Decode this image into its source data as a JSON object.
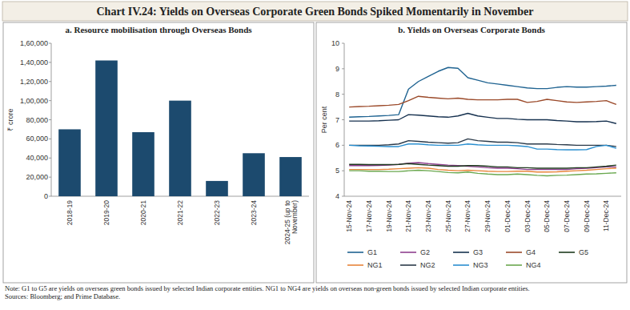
{
  "title": "Chart IV.24: Yields on Overseas Corporate Green Bonds Spiked Momentarily in November",
  "note": "Note: G1 to G5 are yields on overseas green bonds issued by selected Indian corporate entities. NG1 to NG4 are yields on overseas non-green bonds issued by selected Indian corporate entities.",
  "sources": "Sources: Bloomberg; and Prime Database.",
  "chart_data": [
    {
      "type": "bar",
      "title": "a. Resource mobilisation through Overseas Bonds",
      "y_label": "₹ crore",
      "categories": [
        "2018-19",
        "2019-20",
        "2020-21",
        "2021-22",
        "2022-23",
        "2023-24",
        "2024-25 (up to November)"
      ],
      "values": [
        70000,
        142000,
        67000,
        100000,
        16000,
        45000,
        41000
      ],
      "color": "#1c4a6e",
      "ylim": [
        0,
        160000
      ],
      "yticks": [
        0,
        {
          "value": 20000,
          "label": "20,000"
        },
        {
          "value": 40000,
          "label": "40,000"
        },
        {
          "value": 60000,
          "label": "60,000"
        },
        {
          "value": 80000,
          "label": "80,000"
        },
        {
          "value": 100000,
          "label": "1,00,000"
        },
        {
          "value": 120000,
          "label": "1,20,000"
        },
        {
          "value": 140000,
          "label": "1,40,000"
        },
        {
          "value": 160000,
          "label": "1,60,000"
        }
      ],
      "grid": false
    },
    {
      "type": "line",
      "title": "b. Yields on Overseas Corporate Bonds",
      "y_label": "Per cent",
      "categories": [
        "15-Nov-24",
        null,
        "17-Nov-24",
        null,
        "19-Nov-24",
        null,
        "21-Nov-24",
        null,
        "23-Nov-24",
        null,
        "25-Nov-24",
        null,
        "27-Nov-24",
        null,
        "29-Nov-24",
        null,
        "01-Dec-24",
        null,
        "03-Dec-24",
        null,
        "05-Dec-24",
        null,
        "07-Dec-24",
        null,
        "09-Dec-24",
        null,
        "11-Dec-24",
        null
      ],
      "series": [
        {
          "name": "G1",
          "color": "#1f6391",
          "values": [
            7.1,
            7.12,
            7.13,
            7.15,
            7.17,
            7.2,
            8.2,
            8.5,
            8.7,
            8.9,
            9.05,
            9.02,
            8.65,
            8.55,
            8.45,
            8.4,
            8.35,
            8.3,
            8.25,
            8.22,
            8.22,
            8.27,
            8.3,
            8.28,
            8.28,
            8.3,
            8.32,
            8.35
          ]
        },
        {
          "name": "G2",
          "color": "#8e3f8e",
          "values": [
            5.2,
            5.2,
            5.2,
            5.21,
            5.22,
            5.25,
            5.3,
            5.32,
            5.28,
            5.25,
            5.22,
            5.2,
            5.18,
            5.15,
            5.12,
            5.1,
            5.1,
            5.08,
            5.05,
            5.05,
            5.05,
            5.05,
            5.05,
            5.08,
            5.1,
            5.12,
            5.15,
            5.15
          ]
        },
        {
          "name": "G3",
          "color": "#16314f",
          "values": [
            6.95,
            6.95,
            6.95,
            6.96,
            6.98,
            7.0,
            7.2,
            7.18,
            7.15,
            7.12,
            7.1,
            7.15,
            7.25,
            7.15,
            7.1,
            7.05,
            7.05,
            7.02,
            7.0,
            7.0,
            7.0,
            6.97,
            6.95,
            6.92,
            6.92,
            6.93,
            6.95,
            6.85
          ]
        },
        {
          "name": "G4",
          "color": "#9b4a2a",
          "values": [
            7.5,
            7.52,
            7.53,
            7.55,
            7.57,
            7.6,
            7.75,
            7.92,
            7.88,
            7.85,
            7.82,
            7.85,
            7.8,
            7.78,
            7.78,
            7.78,
            7.8,
            7.8,
            7.68,
            7.72,
            7.8,
            7.75,
            7.7,
            7.68,
            7.7,
            7.72,
            7.75,
            7.6
          ]
        },
        {
          "name": "G5",
          "color": "#1e3a1e",
          "values": [
            5.25,
            5.25,
            5.24,
            5.24,
            5.24,
            5.25,
            5.28,
            5.25,
            5.22,
            5.2,
            5.18,
            5.18,
            5.2,
            5.2,
            5.18,
            5.15,
            5.15,
            5.12,
            5.12,
            5.1,
            5.1,
            5.1,
            5.1,
            5.12,
            5.12,
            5.15,
            5.18,
            5.22
          ]
        },
        {
          "name": "NG1",
          "color": "#e8853a",
          "values": [
            5.05,
            5.05,
            5.05,
            5.05,
            5.06,
            5.08,
            5.1,
            5.12,
            5.1,
            5.05,
            5.02,
            5.0,
            5.02,
            5.0,
            4.98,
            4.97,
            4.97,
            4.98,
            4.98,
            4.95,
            4.95,
            4.96,
            4.98,
            5.0,
            5.02,
            5.05,
            5.08,
            5.1
          ]
        },
        {
          "name": "NG2",
          "color": "#2b3a4a",
          "values": [
            6.0,
            6.0,
            6.0,
            6.0,
            6.02,
            6.05,
            6.18,
            6.15,
            6.12,
            6.1,
            6.08,
            6.1,
            6.25,
            6.18,
            6.15,
            6.12,
            6.12,
            6.1,
            6.05,
            6.05,
            6.05,
            6.03,
            6.02,
            6.0,
            6.0,
            6.0,
            6.0,
            5.95
          ]
        },
        {
          "name": "NG3",
          "color": "#2a8fd0",
          "values": [
            6.0,
            5.98,
            5.97,
            5.96,
            5.95,
            5.95,
            6.05,
            6.05,
            6.02,
            6.0,
            6.0,
            6.0,
            6.05,
            6.02,
            6.0,
            6.0,
            6.0,
            5.98,
            5.95,
            5.85,
            5.85,
            5.83,
            5.82,
            5.82,
            5.83,
            5.95,
            6.0,
            5.88
          ]
        },
        {
          "name": "NG4",
          "color": "#6aa84f",
          "values": [
            5.0,
            5.0,
            4.98,
            4.98,
            4.97,
            4.97,
            5.0,
            5.02,
            5.0,
            4.97,
            4.93,
            4.92,
            4.95,
            4.9,
            4.87,
            4.85,
            4.85,
            4.87,
            4.85,
            4.82,
            4.8,
            4.82,
            4.83,
            4.85,
            4.87,
            4.88,
            4.9,
            4.92
          ]
        }
      ],
      "ylim": [
        4,
        10
      ],
      "yticks": [
        4,
        5,
        6,
        7,
        8,
        9,
        10
      ],
      "grid": false,
      "legend": "bottom"
    }
  ]
}
